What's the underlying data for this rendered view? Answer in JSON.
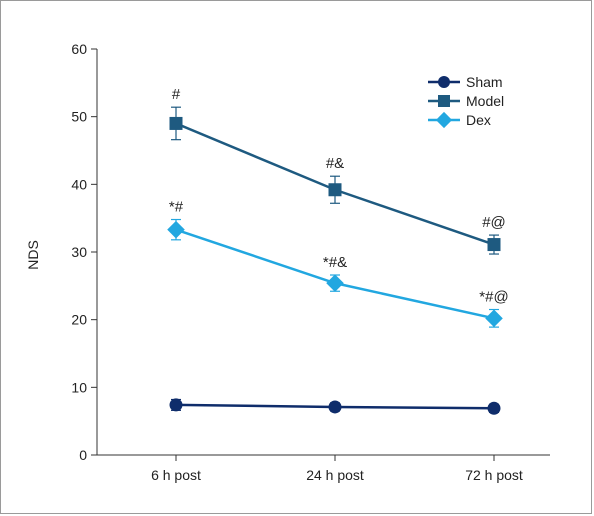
{
  "chart_data": {
    "type": "line",
    "title": "",
    "xlabel": "",
    "ylabel": "NDS",
    "categories": [
      "6 h post",
      "24 h post",
      "72 h post"
    ],
    "ylim": [
      0,
      60
    ],
    "yticks": [
      0,
      10,
      20,
      30,
      40,
      50,
      60
    ],
    "grid": false,
    "legend_position": "top-right",
    "series": [
      {
        "name": "Sham",
        "marker": "circle",
        "color": "#0f2d6b",
        "values": [
          7.4,
          7.1,
          6.9
        ],
        "errors": [
          0.8,
          0.6,
          0.6
        ],
        "annotations": [
          "",
          "",
          ""
        ]
      },
      {
        "name": "Model",
        "marker": "square",
        "color": "#1e5a80",
        "values": [
          49.0,
          39.2,
          31.1
        ],
        "errors": [
          2.4,
          2.0,
          1.4
        ],
        "annotations": [
          "#",
          "#&",
          "#@"
        ]
      },
      {
        "name": "Dex",
        "marker": "diamond",
        "color": "#22a7e0",
        "values": [
          33.3,
          25.4,
          20.2
        ],
        "errors": [
          1.5,
          1.2,
          1.3
        ],
        "annotations": [
          "*#",
          "*#&",
          "*#@"
        ]
      }
    ]
  }
}
